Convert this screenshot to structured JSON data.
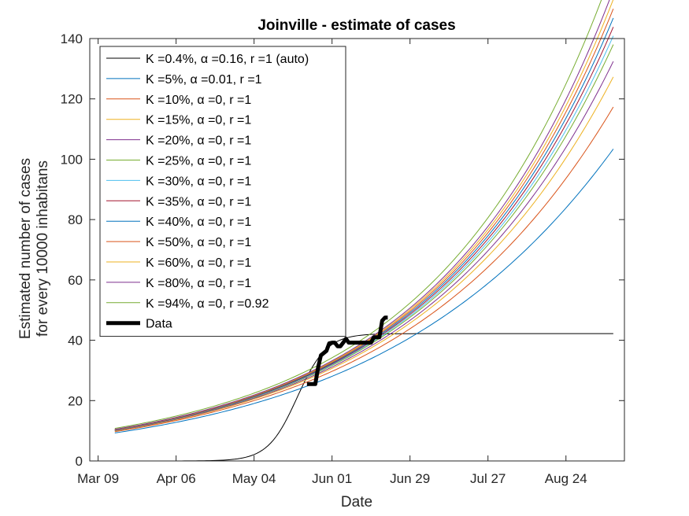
{
  "chart_data": {
    "type": "line",
    "title": "Joinville - estimate of cases",
    "xlabel": "Date",
    "ylabel": [
      "Estimated number of cases",
      "for every 10000 inhabitans"
    ],
    "x_tick_labels": [
      "Mar 09",
      "Apr 06",
      "May 04",
      "Jun 01",
      "Jun 29",
      "Jul 27",
      "Aug 24"
    ],
    "x_tick_days": [
      0,
      28,
      56,
      84,
      112,
      140,
      168
    ],
    "xlim": [
      -3,
      189
    ],
    "ylim": [
      0,
      140
    ],
    "y_ticks": [
      0,
      20,
      40,
      60,
      80,
      100,
      120,
      140
    ],
    "grid": false,
    "legend_position": "top-left",
    "series": [
      {
        "name": "K =0.4%, α =0.16, r =1 (auto)",
        "color": "#000000",
        "kind": "logistic",
        "params": {
          "start": 6,
          "end": 185,
          "L": 42.2,
          "mid": 71.5,
          "k": 0.19
        }
      },
      {
        "name": "K =5%, α =0.01, r =1",
        "color": "#0072BD",
        "kind": "exp",
        "params": {
          "start": 6,
          "end": 185,
          "A": 8.5,
          "k": 0.0148,
          "c": -7e-06
        }
      },
      {
        "name": "K =10%, α =0, r =1",
        "color": "#D95319",
        "kind": "exp",
        "params": {
          "start": 6,
          "end": 185,
          "A": 8.9,
          "k": 0.01468,
          "c": -4e-06
        }
      },
      {
        "name": "K =15%, α =0, r =1",
        "color": "#EDB120",
        "kind": "exp",
        "params": {
          "start": 6,
          "end": 185,
          "A": 9.1,
          "k": 0.01463,
          "c": -2e-06
        }
      },
      {
        "name": "K =20%, α =0, r =1",
        "color": "#7E2F8E",
        "kind": "exp",
        "params": {
          "start": 6,
          "end": 185,
          "A": 9.2,
          "k": 0.0146,
          "c": -1e-06
        }
      },
      {
        "name": "K =25%, α =0, r =1",
        "color": "#77AC30",
        "kind": "exp",
        "params": {
          "start": 6,
          "end": 185,
          "A": 9.3,
          "k": 0.01458,
          "c": 0
        }
      },
      {
        "name": "K =30%, α =0, r =1",
        "color": "#4DBEEE",
        "kind": "exp",
        "params": {
          "start": 6,
          "end": 185,
          "A": 9.35,
          "k": 0.01457,
          "c": 5e-07
        }
      },
      {
        "name": "K =35%, α =0, r =1",
        "color": "#A2142F",
        "kind": "exp",
        "params": {
          "start": 6,
          "end": 185,
          "A": 9.4,
          "k": 0.01456,
          "c": 1e-06
        }
      },
      {
        "name": "K =40%, α =0, r =1",
        "color": "#0072BD",
        "kind": "exp",
        "params": {
          "start": 6,
          "end": 185,
          "A": 9.45,
          "k": 0.01455,
          "c": 1.5e-06
        }
      },
      {
        "name": "K =50%, α =0, r =1",
        "color": "#D95319",
        "kind": "exp",
        "params": {
          "start": 6,
          "end": 185,
          "A": 9.5,
          "k": 0.01454,
          "c": 2e-06
        }
      },
      {
        "name": "K =60%, α =0, r =1",
        "color": "#EDB120",
        "kind": "exp",
        "params": {
          "start": 6,
          "end": 185,
          "A": 9.55,
          "k": 0.01453,
          "c": 2.5e-06
        }
      },
      {
        "name": "K =80%, α =0, r =1",
        "color": "#7E2F8E",
        "kind": "exp",
        "params": {
          "start": 6,
          "end": 185,
          "A": 9.6,
          "k": 0.01452,
          "c": 3e-06
        }
      },
      {
        "name": "K =94%, α =0, r =0.92",
        "color": "#77AC30",
        "kind": "exp",
        "params": {
          "start": 6,
          "end": 185,
          "A": 9.9,
          "k": 0.01442,
          "c": 4e-06
        }
      },
      {
        "name": "Data",
        "color": "#000000",
        "kind": "points",
        "thick": true,
        "x": [
          75,
          78,
          79,
          80,
          82,
          83,
          84,
          85,
          86,
          87,
          88,
          89,
          90,
          91,
          92,
          93,
          94,
          95,
          96,
          97,
          98,
          99,
          100,
          101,
          102,
          103,
          104
        ],
        "y": [
          25.5,
          25.5,
          31,
          35,
          36.5,
          39,
          39.2,
          39.2,
          38,
          38,
          39.2,
          40.5,
          39.2,
          39.2,
          39.2,
          39.2,
          39.2,
          39.2,
          39.2,
          39.2,
          39.2,
          41,
          41,
          41,
          46.5,
          47.5,
          47.5
        ]
      }
    ]
  }
}
